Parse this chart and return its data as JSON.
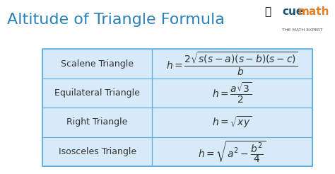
{
  "title": "Altitude of Triangle Formula",
  "title_color": "#2980b9",
  "title_fontsize": 16,
  "bg_color": "#ffffff",
  "table_bg": "#d6eaf8",
  "table_border": "#5dade2",
  "rows": [
    {
      "label": "Scalene Triangle",
      "formula": "$h = \\dfrac{2\\sqrt{s(s-a)(s-b)(s-c)}}{b}$"
    },
    {
      "label": "Equilateral Triangle",
      "formula": "$h = \\dfrac{a\\sqrt{3}}{2}$"
    },
    {
      "label": "Right Triangle",
      "formula": "$h = \\sqrt{xy}$"
    },
    {
      "label": "Isosceles Triangle",
      "formula": "$h = \\sqrt{a^2 - \\dfrac{b^2}{4}}$"
    }
  ],
  "logo_text": "cuemath",
  "logo_sub": "THE MATH EXPERT",
  "logo_color_cue": "#1a5276",
  "logo_color_math": "#e67e22",
  "label_fontsize": 9,
  "formula_fontsize": 10
}
